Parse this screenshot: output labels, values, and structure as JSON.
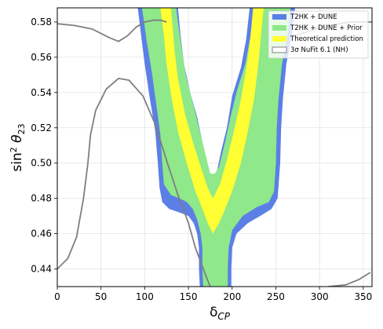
{
  "chart_data": {
    "type": "contour",
    "xlabel": "δ_CP",
    "ylabel": "sin² θ₂₃",
    "xlim": [
      0,
      360
    ],
    "ylim": [
      0.43,
      0.588
    ],
    "x_ticks": [
      0,
      50,
      100,
      150,
      200,
      250,
      300,
      350
    ],
    "y_ticks": [
      0.44,
      0.46,
      0.48,
      0.5,
      0.52,
      0.54,
      0.56,
      0.58
    ],
    "grid": true,
    "legend_position": "top-right",
    "legend": [
      {
        "label": "T2HK + DUNE",
        "color": "#5b7fe6"
      },
      {
        "label": "T2HK + DUNE + Prior",
        "color": "#8fe88a"
      },
      {
        "label": "Theoretical prediction",
        "color": "#ffff33"
      },
      {
        "label": "3σ NuFit 6.1 (NH)",
        "color": "#7f7f7f"
      }
    ],
    "regions": {
      "blue_outer": [
        [
          92,
          0.588
        ],
        [
          96,
          0.572
        ],
        [
          100,
          0.556
        ],
        [
          106,
          0.536
        ],
        [
          112,
          0.518
        ],
        [
          115,
          0.5
        ],
        [
          117,
          0.486
        ],
        [
          120,
          0.478
        ],
        [
          128,
          0.474
        ],
        [
          140,
          0.472
        ],
        [
          150,
          0.47
        ],
        [
          156,
          0.466
        ],
        [
          160,
          0.46
        ],
        [
          162,
          0.452
        ],
        [
          162,
          0.44
        ],
        [
          163,
          0.43
        ],
        [
          199,
          0.43
        ],
        [
          199,
          0.44
        ],
        [
          200,
          0.452
        ],
        [
          205,
          0.46
        ],
        [
          218,
          0.466
        ],
        [
          232,
          0.47
        ],
        [
          245,
          0.474
        ],
        [
          252,
          0.48
        ],
        [
          255,
          0.5
        ],
        [
          256,
          0.52
        ],
        [
          258,
          0.536
        ],
        [
          262,
          0.556
        ],
        [
          268,
          0.572
        ],
        [
          272,
          0.588
        ],
        [
          220,
          0.588
        ],
        [
          216,
          0.57
        ],
        [
          210,
          0.554
        ],
        [
          200,
          0.538
        ],
        [
          194,
          0.52
        ],
        [
          188,
          0.508
        ],
        [
          182,
          0.494
        ],
        [
          178,
          0.49
        ],
        [
          172,
          0.498
        ],
        [
          166,
          0.512
        ],
        [
          160,
          0.526
        ],
        [
          152,
          0.54
        ],
        [
          145,
          0.556
        ],
        [
          141,
          0.572
        ],
        [
          138,
          0.588
        ]
      ],
      "green_inner": [
        [
          97,
          0.588
        ],
        [
          102,
          0.57
        ],
        [
          108,
          0.552
        ],
        [
          113,
          0.534
        ],
        [
          118,
          0.516
        ],
        [
          120,
          0.5
        ],
        [
          122,
          0.488
        ],
        [
          130,
          0.482
        ],
        [
          140,
          0.48
        ],
        [
          148,
          0.478
        ],
        [
          155,
          0.474
        ],
        [
          160,
          0.468
        ],
        [
          164,
          0.46
        ],
        [
          166,
          0.452
        ],
        [
          166,
          0.44
        ],
        [
          167,
          0.43
        ],
        [
          195,
          0.43
        ],
        [
          195,
          0.44
        ],
        [
          196,
          0.452
        ],
        [
          200,
          0.462
        ],
        [
          212,
          0.47
        ],
        [
          228,
          0.475
        ],
        [
          242,
          0.478
        ],
        [
          248,
          0.484
        ],
        [
          250,
          0.5
        ],
        [
          251,
          0.52
        ],
        [
          253,
          0.536
        ],
        [
          257,
          0.556
        ],
        [
          263,
          0.572
        ],
        [
          267,
          0.588
        ],
        [
          225,
          0.588
        ],
        [
          221,
          0.572
        ],
        [
          215,
          0.556
        ],
        [
          206,
          0.542
        ],
        [
          198,
          0.526
        ],
        [
          192,
          0.512
        ],
        [
          185,
          0.498
        ],
        [
          180,
          0.494
        ],
        [
          175,
          0.494
        ],
        [
          170,
          0.504
        ],
        [
          163,
          0.518
        ],
        [
          155,
          0.534
        ],
        [
          147,
          0.55
        ],
        [
          142,
          0.566
        ],
        [
          138,
          0.58
        ],
        [
          136,
          0.588
        ]
      ],
      "yellow_band": [
        [
          118,
          0.588
        ],
        [
          122,
          0.572
        ],
        [
          125,
          0.556
        ],
        [
          131,
          0.536
        ],
        [
          138,
          0.518
        ],
        [
          148,
          0.5
        ],
        [
          158,
          0.484
        ],
        [
          166,
          0.474
        ],
        [
          172,
          0.466
        ],
        [
          178,
          0.46
        ],
        [
          185,
          0.466
        ],
        [
          192,
          0.474
        ],
        [
          200,
          0.484
        ],
        [
          210,
          0.5
        ],
        [
          218,
          0.518
        ],
        [
          225,
          0.536
        ],
        [
          230,
          0.556
        ],
        [
          233,
          0.572
        ],
        [
          236,
          0.588
        ],
        [
          224,
          0.588
        ],
        [
          221,
          0.572
        ],
        [
          217,
          0.556
        ],
        [
          210,
          0.536
        ],
        [
          202,
          0.518
        ],
        [
          193,
          0.5
        ],
        [
          186,
          0.488
        ],
        [
          178,
          0.48
        ],
        [
          172,
          0.486
        ],
        [
          164,
          0.498
        ],
        [
          155,
          0.512
        ],
        [
          146,
          0.528
        ],
        [
          138,
          0.548
        ],
        [
          134,
          0.564
        ],
        [
          130,
          0.588
        ]
      ]
    },
    "nufit_lines": [
      [
        [
          0,
          0.579
        ],
        [
          20,
          0.578
        ],
        [
          40,
          0.576
        ],
        [
          60,
          0.571
        ],
        [
          70,
          0.569
        ],
        [
          80,
          0.572
        ],
        [
          90,
          0.577
        ],
        [
          100,
          0.58
        ],
        [
          110,
          0.581
        ],
        [
          118,
          0.581
        ],
        [
          125,
          0.58
        ]
      ],
      [
        [
          0,
          0.44
        ],
        [
          12,
          0.446
        ],
        [
          22,
          0.458
        ],
        [
          30,
          0.48
        ],
        [
          35,
          0.5
        ],
        [
          38,
          0.516
        ],
        [
          44,
          0.53
        ],
        [
          56,
          0.542
        ],
        [
          70,
          0.548
        ],
        [
          82,
          0.547
        ],
        [
          98,
          0.538
        ],
        [
          112,
          0.522
        ],
        [
          126,
          0.5
        ],
        [
          138,
          0.482
        ],
        [
          150,
          0.466
        ],
        [
          158,
          0.452
        ],
        [
          164,
          0.444
        ],
        [
          170,
          0.436
        ],
        [
          175,
          0.43
        ]
      ],
      [
        [
          310,
          0.43
        ],
        [
          330,
          0.431
        ],
        [
          345,
          0.434
        ],
        [
          358,
          0.438
        ]
      ],
      [
        [
          270,
          0.572
        ],
        [
          290,
          0.575
        ],
        [
          310,
          0.578
        ],
        [
          335,
          0.58
        ],
        [
          360,
          0.58
        ]
      ]
    ]
  }
}
